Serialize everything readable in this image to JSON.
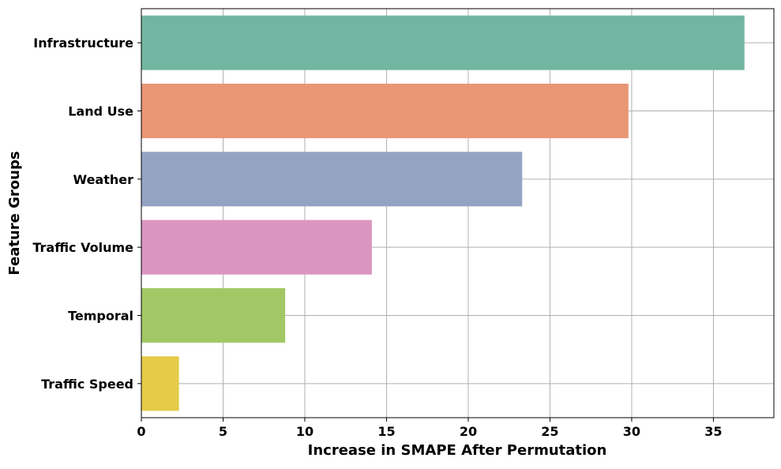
{
  "chart_data": {
    "type": "bar",
    "orientation": "horizontal",
    "title": "",
    "xlabel": "Increase in SMAPE After Permutation",
    "ylabel": "Feature Groups",
    "categories": [
      "Infrastructure",
      "Land Use",
      "Weather",
      "Traffic Volume",
      "Temporal",
      "Traffic Speed"
    ],
    "values": [
      36.9,
      29.8,
      23.3,
      14.1,
      8.8,
      2.3
    ],
    "colors": [
      "#72b6a1",
      "#e99675",
      "#95a3c3",
      "#db96c0",
      "#a2c865",
      "#e5cb48"
    ],
    "xlim": [
      0,
      38.7
    ],
    "xticks": [
      "0",
      "5",
      "10",
      "15",
      "20",
      "25",
      "30",
      "35"
    ],
    "grid": true,
    "legend": "none"
  }
}
